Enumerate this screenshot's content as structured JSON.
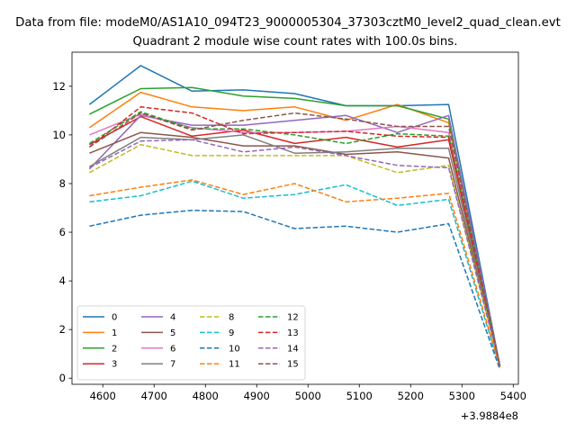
{
  "chart_data": {
    "type": "line",
    "suptitle": "Data from file: modeM0/AS1A10_094T23_9000005304_37303cztM0_level2_quad_clean.evt",
    "title": "Quadrant 2 module wise count rates with 100.0s bins.",
    "xlabel": "",
    "ylabel": "",
    "x_offset_label": "+3.9884e8",
    "x": [
      4574,
      4674,
      4774,
      4874,
      4974,
      5074,
      5174,
      5274,
      5374
    ],
    "xlim": [
      4540,
      5410
    ],
    "ylim": [
      -0.25,
      13.4
    ],
    "xticks": [
      4600,
      4700,
      4800,
      4900,
      5000,
      5100,
      5200,
      5300,
      5400
    ],
    "yticks": [
      0,
      2,
      4,
      6,
      8,
      10,
      12
    ],
    "grid": false,
    "legend": {
      "placement": "lower-left",
      "columns": 4
    },
    "series": [
      {
        "name": "0",
        "color": "#1f77b4",
        "dash": "solid",
        "values": [
          11.25,
          12.85,
          11.8,
          11.85,
          11.7,
          11.2,
          11.2,
          11.25,
          0.5
        ]
      },
      {
        "name": "1",
        "color": "#ff7f0e",
        "dash": "solid",
        "values": [
          10.3,
          11.75,
          11.15,
          11.0,
          11.15,
          10.6,
          11.25,
          10.5,
          0.5
        ]
      },
      {
        "name": "2",
        "color": "#2ca02c",
        "dash": "solid",
        "values": [
          10.85,
          11.9,
          11.95,
          11.6,
          11.5,
          11.2,
          11.2,
          10.65,
          0.5
        ]
      },
      {
        "name": "3",
        "color": "#d62728",
        "dash": "solid",
        "values": [
          9.6,
          10.75,
          9.95,
          10.2,
          9.65,
          9.9,
          9.5,
          9.8,
          0.5
        ]
      },
      {
        "name": "4",
        "color": "#9467bd",
        "dash": "solid",
        "values": [
          8.6,
          10.8,
          10.4,
          10.4,
          10.6,
          10.8,
          10.1,
          10.8,
          0.5
        ]
      },
      {
        "name": "5",
        "color": "#8c564b",
        "dash": "solid",
        "values": [
          9.25,
          10.1,
          9.9,
          9.55,
          9.55,
          9.2,
          9.3,
          9.05,
          0.5
        ]
      },
      {
        "name": "6",
        "color": "#e377c2",
        "dash": "solid",
        "values": [
          10.0,
          10.85,
          10.3,
          10.1,
          10.1,
          10.15,
          10.35,
          10.1,
          0.5
        ]
      },
      {
        "name": "7",
        "color": "#7f7f7f",
        "dash": "solid",
        "values": [
          8.7,
          9.9,
          9.8,
          10.0,
          9.25,
          9.3,
          9.45,
          9.45,
          0.5
        ]
      },
      {
        "name": "8",
        "color": "#bcbd22",
        "dash": "dashed",
        "values": [
          8.45,
          9.6,
          9.15,
          9.15,
          9.15,
          9.15,
          8.45,
          8.75,
          0.5
        ]
      },
      {
        "name": "9",
        "color": "#17becf",
        "dash": "dashed",
        "values": [
          7.25,
          7.5,
          8.1,
          7.4,
          7.55,
          7.95,
          7.1,
          7.35,
          0.4
        ]
      },
      {
        "name": "10",
        "color": "#1f77b4",
        "dash": "dashed",
        "values": [
          6.25,
          6.7,
          6.9,
          6.85,
          6.15,
          6.25,
          6.0,
          6.35,
          0.35
        ]
      },
      {
        "name": "11",
        "color": "#ff7f0e",
        "dash": "dashed",
        "values": [
          7.5,
          7.85,
          8.15,
          7.55,
          8.0,
          7.25,
          7.4,
          7.6,
          0.45
        ]
      },
      {
        "name": "12",
        "color": "#2ca02c",
        "dash": "dashed",
        "values": [
          9.65,
          10.95,
          10.25,
          10.25,
          10.0,
          9.65,
          10.05,
          9.95,
          0.5
        ]
      },
      {
        "name": "13",
        "color": "#d62728",
        "dash": "dashed",
        "values": [
          9.5,
          11.15,
          10.9,
          10.05,
          10.1,
          10.15,
          9.95,
          9.9,
          0.5
        ]
      },
      {
        "name": "14",
        "color": "#9467bd",
        "dash": "dashed",
        "values": [
          8.65,
          9.75,
          9.8,
          9.3,
          9.5,
          9.15,
          8.75,
          8.65,
          0.5
        ]
      },
      {
        "name": "15",
        "color": "#8c564b",
        "dash": "dashed",
        "values": [
          9.5,
          10.9,
          10.2,
          10.6,
          10.9,
          10.65,
          10.35,
          10.35,
          0.5
        ]
      }
    ]
  }
}
